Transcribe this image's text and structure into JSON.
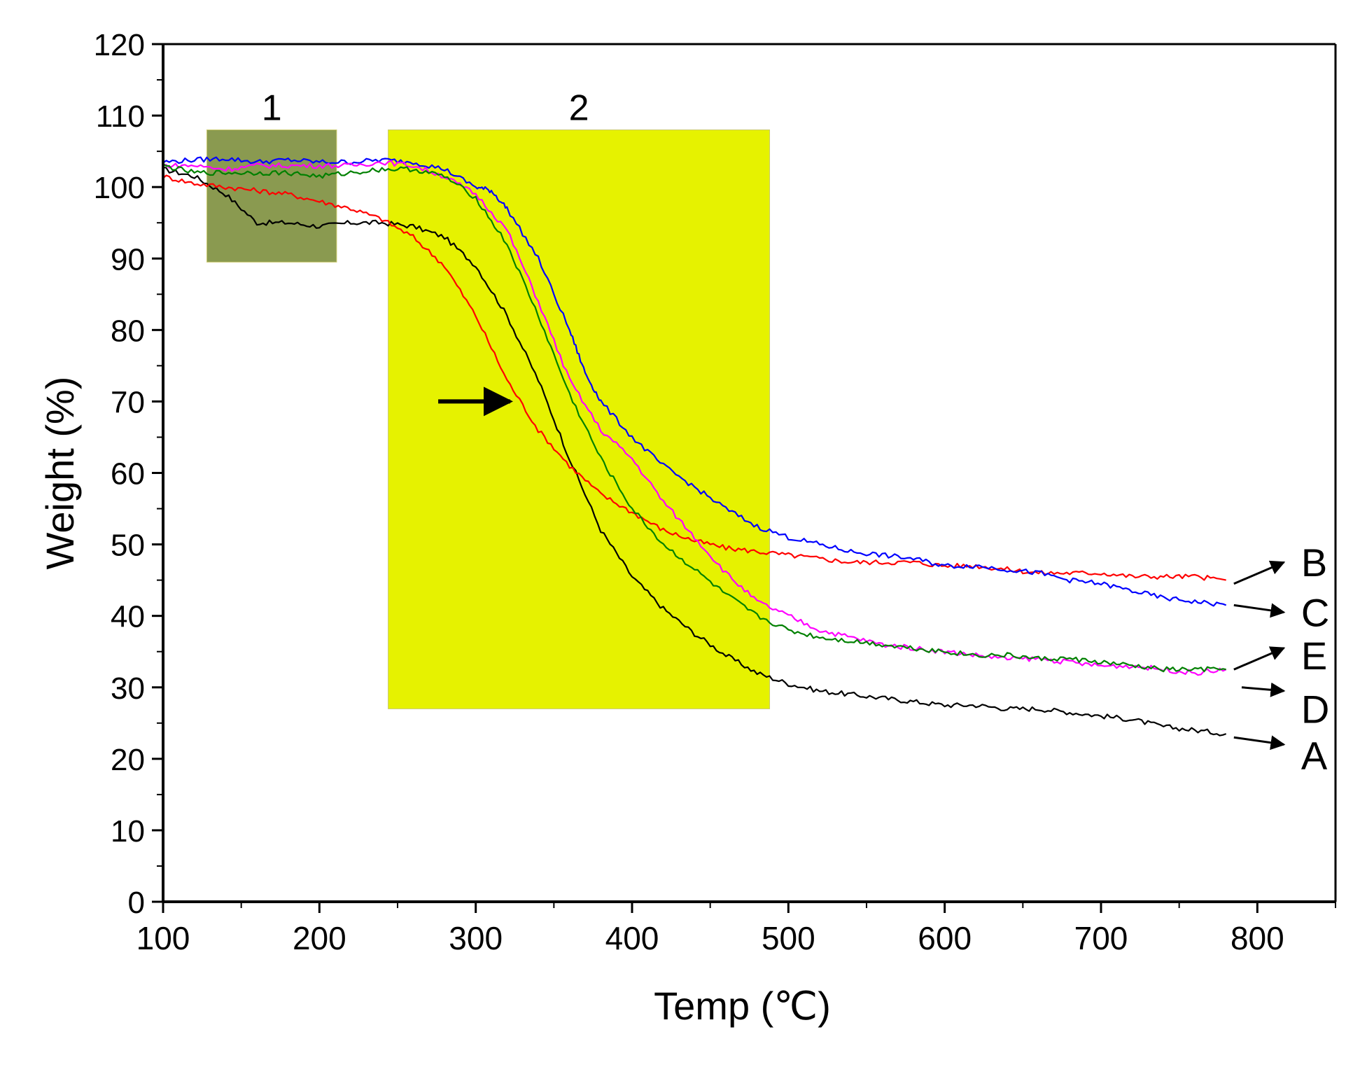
{
  "chart_data": {
    "type": "line",
    "xlabel": "Temp (℃)",
    "ylabel": "Weight (%)",
    "xlim": [
      100,
      850
    ],
    "ylim": [
      0,
      120
    ],
    "xticks": [
      100,
      200,
      300,
      400,
      500,
      600,
      700,
      800
    ],
    "yticks": [
      0,
      10,
      20,
      30,
      40,
      50,
      60,
      70,
      80,
      90,
      100,
      110,
      120
    ],
    "regions": [
      {
        "label": "1",
        "x": [
          128,
          211
        ],
        "y": [
          89.5,
          108
        ],
        "color": "#8a9a50"
      },
      {
        "label": "2",
        "x": [
          244,
          488
        ],
        "y": [
          27,
          108
        ],
        "color": "#e6f200"
      }
    ],
    "annotation_arrow": {
      "x_from": 276,
      "x_to": 322,
      "y": 70
    },
    "series": [
      {
        "name": "A",
        "color": "#000000",
        "points": [
          [
            100,
            102.5
          ],
          [
            120,
            101.5
          ],
          [
            140,
            99
          ],
          [
            160,
            95
          ],
          [
            180,
            95
          ],
          [
            200,
            94.5
          ],
          [
            220,
            95
          ],
          [
            240,
            95
          ],
          [
            260,
            94.5
          ],
          [
            280,
            93
          ],
          [
            300,
            89
          ],
          [
            320,
            82
          ],
          [
            340,
            73
          ],
          [
            360,
            62
          ],
          [
            380,
            52
          ],
          [
            400,
            45.5
          ],
          [
            420,
            41
          ],
          [
            440,
            37.5
          ],
          [
            460,
            34.5
          ],
          [
            480,
            32
          ],
          [
            500,
            30.5
          ],
          [
            520,
            29.5
          ],
          [
            540,
            29
          ],
          [
            560,
            28.5
          ],
          [
            580,
            28
          ],
          [
            600,
            27.5
          ],
          [
            620,
            27.5
          ],
          [
            640,
            27
          ],
          [
            660,
            27
          ],
          [
            680,
            26.5
          ],
          [
            700,
            26
          ],
          [
            720,
            25.5
          ],
          [
            740,
            24.5
          ],
          [
            760,
            24
          ],
          [
            780,
            23.5
          ]
        ]
      },
      {
        "name": "B",
        "color": "#ff0000",
        "points": [
          [
            100,
            101.5
          ],
          [
            120,
            100.5
          ],
          [
            140,
            100
          ],
          [
            160,
            99.5
          ],
          [
            180,
            99
          ],
          [
            200,
            98
          ],
          [
            220,
            97
          ],
          [
            240,
            95.5
          ],
          [
            260,
            93
          ],
          [
            280,
            89
          ],
          [
            300,
            82
          ],
          [
            320,
            73
          ],
          [
            340,
            66
          ],
          [
            360,
            61
          ],
          [
            380,
            57
          ],
          [
            400,
            54.5
          ],
          [
            420,
            52
          ],
          [
            440,
            50.5
          ],
          [
            460,
            49.5
          ],
          [
            480,
            49
          ],
          [
            500,
            48.5
          ],
          [
            520,
            48
          ],
          [
            540,
            47.5
          ],
          [
            560,
            47.5
          ],
          [
            580,
            47.5
          ],
          [
            600,
            47
          ],
          [
            620,
            47
          ],
          [
            640,
            46.5
          ],
          [
            660,
            46
          ],
          [
            680,
            46
          ],
          [
            700,
            46
          ],
          [
            720,
            45.5
          ],
          [
            740,
            45.5
          ],
          [
            760,
            45.5
          ],
          [
            780,
            45
          ]
        ]
      },
      {
        "name": "C",
        "color": "#0000ff",
        "points": [
          [
            100,
            103.5
          ],
          [
            120,
            103.8
          ],
          [
            140,
            104
          ],
          [
            160,
            103.5
          ],
          [
            180,
            103.8
          ],
          [
            200,
            103.5
          ],
          [
            220,
            103.5
          ],
          [
            240,
            103.8
          ],
          [
            260,
            103.5
          ],
          [
            280,
            102.5
          ],
          [
            300,
            100
          ],
          [
            310,
            99.5
          ],
          [
            320,
            97
          ],
          [
            340,
            90
          ],
          [
            360,
            80
          ],
          [
            370,
            74
          ],
          [
            380,
            70
          ],
          [
            400,
            65
          ],
          [
            420,
            61
          ],
          [
            440,
            58
          ],
          [
            460,
            55
          ],
          [
            480,
            52.5
          ],
          [
            500,
            51
          ],
          [
            520,
            50
          ],
          [
            540,
            49
          ],
          [
            560,
            48.5
          ],
          [
            580,
            48
          ],
          [
            600,
            47
          ],
          [
            620,
            47
          ],
          [
            640,
            46.5
          ],
          [
            660,
            46
          ],
          [
            680,
            45
          ],
          [
            700,
            44.5
          ],
          [
            720,
            43.5
          ],
          [
            740,
            42.5
          ],
          [
            760,
            42
          ],
          [
            780,
            41.5
          ]
        ]
      },
      {
        "name": "D",
        "color": "#ff00ff",
        "points": [
          [
            100,
            103
          ],
          [
            120,
            103
          ],
          [
            140,
            102.5
          ],
          [
            160,
            103
          ],
          [
            180,
            103
          ],
          [
            200,
            103
          ],
          [
            220,
            103
          ],
          [
            240,
            103.5
          ],
          [
            260,
            103
          ],
          [
            280,
            101.5
          ],
          [
            300,
            99
          ],
          [
            320,
            94
          ],
          [
            340,
            84
          ],
          [
            360,
            73
          ],
          [
            380,
            66
          ],
          [
            400,
            62
          ],
          [
            420,
            56
          ],
          [
            440,
            51
          ],
          [
            460,
            46
          ],
          [
            480,
            42
          ],
          [
            500,
            40
          ],
          [
            520,
            38
          ],
          [
            540,
            37
          ],
          [
            560,
            36
          ],
          [
            580,
            35.5
          ],
          [
            600,
            35
          ],
          [
            620,
            34.5
          ],
          [
            640,
            34
          ],
          [
            660,
            34
          ],
          [
            680,
            33.5
          ],
          [
            700,
            33
          ],
          [
            720,
            33
          ],
          [
            740,
            32.5
          ],
          [
            760,
            32
          ],
          [
            780,
            32.5
          ]
        ]
      },
      {
        "name": "E",
        "color": "#008000",
        "points": [
          [
            100,
            103
          ],
          [
            120,
            102
          ],
          [
            140,
            102
          ],
          [
            160,
            102
          ],
          [
            180,
            102
          ],
          [
            200,
            101.5
          ],
          [
            220,
            102
          ],
          [
            240,
            102.5
          ],
          [
            260,
            102.5
          ],
          [
            280,
            101.5
          ],
          [
            300,
            98.5
          ],
          [
            320,
            92
          ],
          [
            340,
            82
          ],
          [
            360,
            71
          ],
          [
            380,
            62
          ],
          [
            400,
            55
          ],
          [
            420,
            50
          ],
          [
            440,
            46.5
          ],
          [
            460,
            43
          ],
          [
            480,
            40
          ],
          [
            500,
            38
          ],
          [
            520,
            37
          ],
          [
            540,
            36.5
          ],
          [
            560,
            36
          ],
          [
            580,
            35.5
          ],
          [
            600,
            35
          ],
          [
            620,
            34.5
          ],
          [
            640,
            34.5
          ],
          [
            660,
            34
          ],
          [
            680,
            34
          ],
          [
            700,
            33.5
          ],
          [
            720,
            33
          ],
          [
            740,
            32.5
          ],
          [
            760,
            32.5
          ],
          [
            780,
            32.5
          ]
        ]
      }
    ],
    "end_labels": [
      {
        "label": "B",
        "y": 47.5,
        "arrow_from": [
          785,
          44.5
        ],
        "arrow_to": [
          817,
          47.5
        ]
      },
      {
        "label": "C",
        "y": 40.5,
        "arrow_from": [
          785,
          41.5
        ],
        "arrow_to": [
          817,
          40.5
        ]
      },
      {
        "label": "E",
        "y": 34.5,
        "arrow_from": [
          785,
          32.5
        ],
        "arrow_to": [
          817,
          35.5
        ]
      },
      {
        "label": "D",
        "y": 27,
        "arrow_from": [
          790,
          30
        ],
        "arrow_to": [
          817,
          29.5
        ]
      },
      {
        "label": "A",
        "y": 20.5,
        "arrow_from": [
          785,
          23
        ],
        "arrow_to": [
          817,
          22
        ]
      }
    ]
  }
}
